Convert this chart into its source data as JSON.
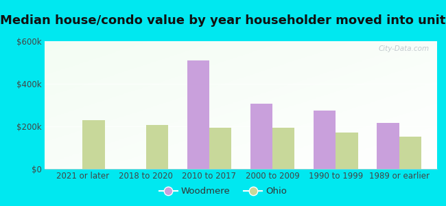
{
  "title": "Median house/condo value by year householder moved into unit",
  "categories": [
    "2021 or later",
    "2018 to 2020",
    "2010 to 2017",
    "2000 to 2009",
    "1990 to 1999",
    "1989 or earlier"
  ],
  "woodmere_values": [
    0,
    0,
    510000,
    305000,
    275000,
    215000
  ],
  "ohio_values": [
    230000,
    205000,
    193000,
    193000,
    172000,
    152000
  ],
  "woodmere_color": "#c9a0dc",
  "ohio_color": "#c8d89a",
  "background_outer": "#00e8f0",
  "ylim": [
    0,
    600000
  ],
  "yticks": [
    0,
    200000,
    400000,
    600000
  ],
  "ytick_labels": [
    "$0",
    "$200k",
    "$400k",
    "$600k"
  ],
  "bar_width": 0.35,
  "watermark": "City-Data.com",
  "legend_woodmere": "Woodmere",
  "legend_ohio": "Ohio",
  "title_fontsize": 13,
  "tick_fontsize": 8.5,
  "legend_fontsize": 9.5
}
